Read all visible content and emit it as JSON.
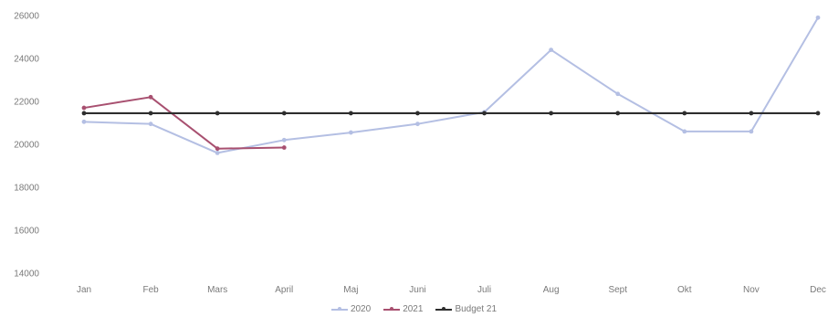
{
  "chart_data": {
    "type": "line",
    "title": "",
    "xlabel": "",
    "ylabel": "",
    "categories": [
      "Jan",
      "Feb",
      "Mars",
      "April",
      "Maj",
      "Juni",
      "Juli",
      "Aug",
      "Sept",
      "Okt",
      "Nov",
      "Dec"
    ],
    "ylim": [
      14000,
      26000
    ],
    "yticks": [
      "14000",
      "16000",
      "18000",
      "20000",
      "22000",
      "24000",
      "26000"
    ],
    "grid": false,
    "legend_position": "bottom",
    "series": [
      {
        "name": "2020",
        "color": "#b4bfe3",
        "values": [
          21050,
          20950,
          19600,
          20200,
          20550,
          20950,
          21500,
          24400,
          22350,
          20600,
          20600,
          25900
        ]
      },
      {
        "name": "2021",
        "color": "#a85070",
        "values": [
          21700,
          22200,
          19800,
          19850,
          null,
          null,
          null,
          null,
          null,
          null,
          null,
          null
        ]
      },
      {
        "name": "Budget 21",
        "color": "#2e2e2e",
        "values": [
          21450,
          21450,
          21450,
          21450,
          21450,
          21450,
          21450,
          21450,
          21450,
          21450,
          21450,
          21450
        ]
      }
    ]
  }
}
